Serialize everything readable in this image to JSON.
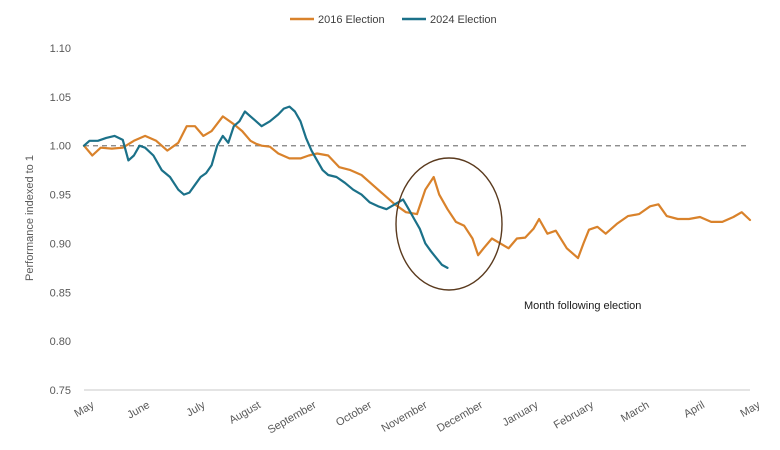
{
  "chart_data": {
    "type": "line",
    "title": "",
    "xlabel": "",
    "ylabel": "Performance indexed to 1",
    "ylim": [
      0.75,
      1.1
    ],
    "yticks": [
      "0.75",
      "0.80",
      "0.85",
      "0.90",
      "0.95",
      "1.00",
      "1.05",
      "1.10"
    ],
    "xlim": [
      0,
      12
    ],
    "month_labels": [
      "May",
      "June",
      "July",
      "August",
      "September",
      "October",
      "November",
      "December",
      "January",
      "February",
      "March",
      "April",
      "May"
    ],
    "grid": false,
    "legend_position": "top",
    "reference_line": {
      "value": 1.0,
      "style": "dashed",
      "color": "#7f7f7f"
    },
    "annotation": {
      "text": "Month following election",
      "shape": "ellipse"
    },
    "series": [
      {
        "name": "2016 Election",
        "color": "#d9822b",
        "x": [
          0,
          0.15,
          0.3,
          0.5,
          0.7,
          0.9,
          1.1,
          1.3,
          1.5,
          1.7,
          1.85,
          2.0,
          2.15,
          2.3,
          2.5,
          2.7,
          2.85,
          3.0,
          3.1,
          3.2,
          3.35,
          3.5,
          3.7,
          3.9,
          4.05,
          4.2,
          4.4,
          4.6,
          4.8,
          5.0,
          5.2,
          5.4,
          5.6,
          5.8,
          6.0,
          6.15,
          6.3,
          6.4,
          6.55,
          6.7,
          6.85,
          7.0,
          7.1,
          7.2,
          7.35,
          7.5,
          7.65,
          7.8,
          7.95,
          8.1,
          8.2,
          8.35,
          8.5,
          8.7,
          8.9,
          9.0,
          9.1,
          9.25,
          9.4,
          9.6,
          9.8,
          10.0,
          10.2,
          10.35,
          10.5,
          10.7,
          10.9,
          11.1,
          11.3,
          11.5,
          11.7,
          11.85,
          12.0
        ],
        "y": [
          1.0,
          0.99,
          0.998,
          0.997,
          0.998,
          1.005,
          1.01,
          1.005,
          0.995,
          1.003,
          1.02,
          1.02,
          1.01,
          1.015,
          1.03,
          1.022,
          1.015,
          1.005,
          1.002,
          1.0,
          0.999,
          0.992,
          0.987,
          0.987,
          0.99,
          0.992,
          0.99,
          0.978,
          0.975,
          0.97,
          0.96,
          0.95,
          0.94,
          0.932,
          0.93,
          0.955,
          0.968,
          0.95,
          0.935,
          0.922,
          0.918,
          0.905,
          0.888,
          0.895,
          0.905,
          0.9,
          0.895,
          0.905,
          0.906,
          0.915,
          0.925,
          0.91,
          0.913,
          0.895,
          0.885,
          0.9,
          0.914,
          0.917,
          0.91,
          0.92,
          0.928,
          0.93,
          0.938,
          0.94,
          0.928,
          0.925,
          0.925,
          0.927,
          0.922,
          0.922,
          0.927,
          0.932,
          0.924
        ]
      },
      {
        "name": "2024 Election",
        "color": "#1b7189",
        "x": [
          0,
          0.1,
          0.25,
          0.4,
          0.55,
          0.7,
          0.8,
          0.9,
          1.0,
          1.1,
          1.25,
          1.4,
          1.55,
          1.7,
          1.8,
          1.9,
          2.0,
          2.1,
          2.2,
          2.3,
          2.4,
          2.5,
          2.6,
          2.7,
          2.8,
          2.9,
          3.0,
          3.1,
          3.2,
          3.35,
          3.5,
          3.6,
          3.7,
          3.8,
          3.9,
          4.0,
          4.1,
          4.2,
          4.3,
          4.4,
          4.55,
          4.7,
          4.85,
          5.0,
          5.15,
          5.3,
          5.45,
          5.6,
          5.75,
          5.85,
          5.95,
          6.05,
          6.15,
          6.25,
          6.35,
          6.45,
          6.55
        ],
        "y": [
          1.0,
          1.005,
          1.005,
          1.008,
          1.01,
          1.006,
          0.985,
          0.99,
          1.0,
          0.998,
          0.99,
          0.975,
          0.968,
          0.955,
          0.95,
          0.952,
          0.96,
          0.968,
          0.972,
          0.98,
          1.0,
          1.01,
          1.003,
          1.02,
          1.025,
          1.035,
          1.03,
          1.025,
          1.02,
          1.025,
          1.032,
          1.038,
          1.04,
          1.035,
          1.025,
          1.008,
          0.995,
          0.985,
          0.975,
          0.97,
          0.968,
          0.962,
          0.955,
          0.95,
          0.942,
          0.938,
          0.935,
          0.94,
          0.945,
          0.935,
          0.925,
          0.915,
          0.9,
          0.892,
          0.885,
          0.878,
          0.875
        ]
      }
    ]
  }
}
